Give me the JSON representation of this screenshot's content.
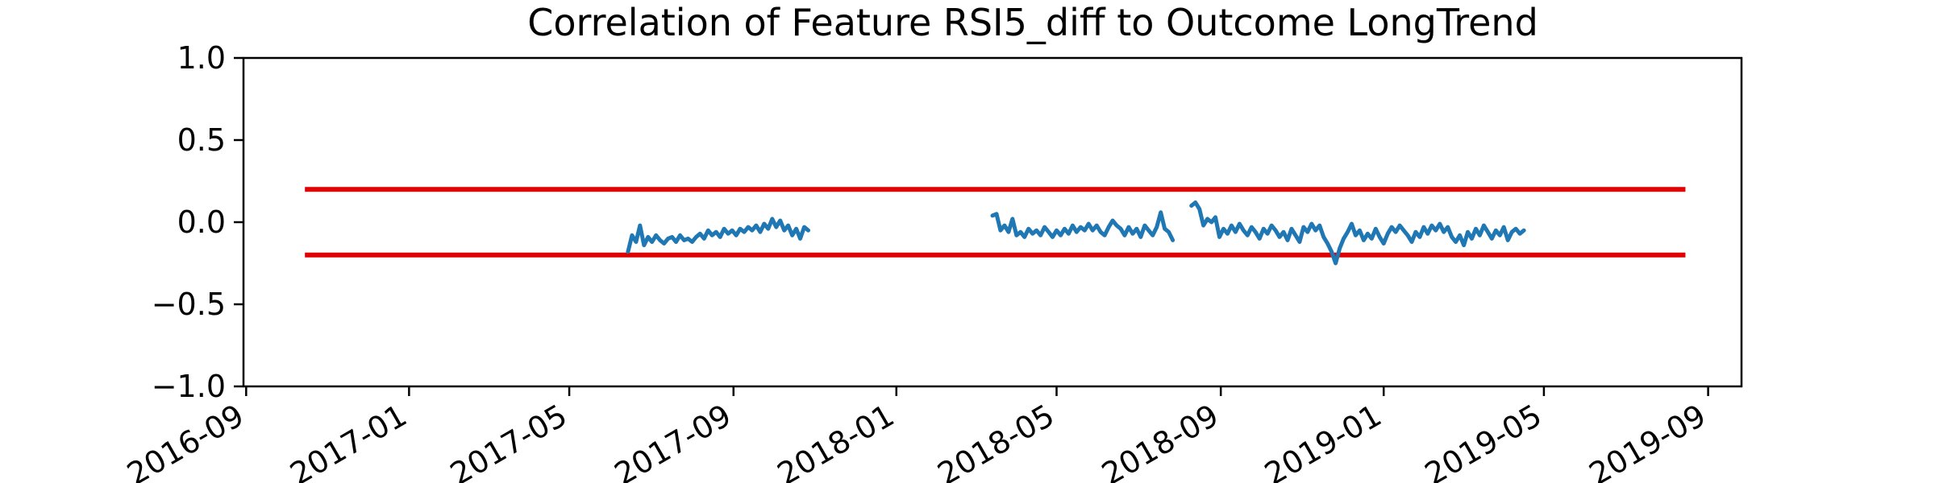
{
  "chart_data": {
    "type": "line",
    "title": "Correlation of Feature RSI5_diff to Outcome LongTrend",
    "xlabel": "",
    "ylabel": "",
    "ylim": [
      -1.0,
      1.0
    ],
    "xlim": [
      "2016-08-30",
      "2019-09-26"
    ],
    "y_ticks": [
      "1.0",
      "0.5",
      "0.0",
      "−0.5",
      "−1.0"
    ],
    "y_tick_values": [
      1.0,
      0.5,
      0.0,
      -0.5,
      -1.0
    ],
    "x_ticks": [
      "2016-09",
      "2017-01",
      "2017-05",
      "2017-09",
      "2018-01",
      "2018-05",
      "2018-09",
      "2019-01",
      "2019-05",
      "2019-09"
    ],
    "x_tick_dates": [
      "2016-09-01",
      "2017-01-01",
      "2017-05-01",
      "2017-09-01",
      "2018-01-01",
      "2018-05-01",
      "2018-09-01",
      "2019-01-01",
      "2019-05-01",
      "2019-09-01"
    ],
    "grid": false,
    "legend": "none",
    "colors": {
      "series": "#1f77b4",
      "threshold": "#e00000"
    },
    "thresholds": [
      {
        "y": 0.2,
        "x_start": "2016-10-15",
        "x_end": "2019-08-15"
      },
      {
        "y": -0.2,
        "x_start": "2016-10-15",
        "x_end": "2019-08-15"
      }
    ],
    "segments": [
      {
        "x": [
          "2017-06-14",
          "2017-06-17",
          "2017-06-20",
          "2017-06-23",
          "2017-06-26",
          "2017-06-29",
          "2017-07-02",
          "2017-07-05",
          "2017-07-08",
          "2017-07-11",
          "2017-07-14",
          "2017-07-17",
          "2017-07-20",
          "2017-07-23",
          "2017-07-26",
          "2017-07-29",
          "2017-08-01",
          "2017-08-04",
          "2017-08-07",
          "2017-08-10",
          "2017-08-13",
          "2017-08-16",
          "2017-08-19",
          "2017-08-22",
          "2017-08-25",
          "2017-08-28",
          "2017-08-31",
          "2017-09-03",
          "2017-09-06",
          "2017-09-09",
          "2017-09-12",
          "2017-09-15",
          "2017-09-18",
          "2017-09-21",
          "2017-09-24",
          "2017-09-27",
          "2017-09-30",
          "2017-10-03",
          "2017-10-06",
          "2017-10-09",
          "2017-10-12",
          "2017-10-15",
          "2017-10-18",
          "2017-10-21",
          "2017-10-24",
          "2017-10-27"
        ],
        "y": [
          -0.18,
          -0.08,
          -0.12,
          -0.02,
          -0.14,
          -0.09,
          -0.12,
          -0.08,
          -0.11,
          -0.13,
          -0.1,
          -0.09,
          -0.12,
          -0.08,
          -0.11,
          -0.1,
          -0.12,
          -0.09,
          -0.07,
          -0.1,
          -0.05,
          -0.08,
          -0.06,
          -0.09,
          -0.04,
          -0.07,
          -0.05,
          -0.08,
          -0.04,
          -0.06,
          -0.03,
          -0.05,
          -0.02,
          -0.06,
          -0.01,
          -0.04,
          0.02,
          -0.03,
          0.01,
          -0.05,
          -0.02,
          -0.08,
          -0.04,
          -0.1,
          -0.03,
          -0.05
        ]
      },
      {
        "x": [
          "2018-03-14",
          "2018-03-17",
          "2018-03-20",
          "2018-03-23",
          "2018-03-26",
          "2018-03-29",
          "2018-04-01",
          "2018-04-04",
          "2018-04-07",
          "2018-04-10",
          "2018-04-13",
          "2018-04-16",
          "2018-04-19",
          "2018-04-22",
          "2018-04-25",
          "2018-04-28",
          "2018-05-01",
          "2018-05-04",
          "2018-05-07",
          "2018-05-10",
          "2018-05-13",
          "2018-05-16",
          "2018-05-19",
          "2018-05-22",
          "2018-05-25",
          "2018-05-28",
          "2018-05-31",
          "2018-06-03",
          "2018-06-06",
          "2018-06-09",
          "2018-06-12",
          "2018-06-15",
          "2018-06-18",
          "2018-06-21",
          "2018-06-24",
          "2018-06-27",
          "2018-06-30",
          "2018-07-03",
          "2018-07-06",
          "2018-07-09",
          "2018-07-12",
          "2018-07-15",
          "2018-07-18",
          "2018-07-21",
          "2018-07-24",
          "2018-07-27"
        ],
        "y": [
          0.04,
          0.05,
          -0.05,
          -0.02,
          -0.06,
          0.02,
          -0.08,
          -0.06,
          -0.09,
          -0.04,
          -0.07,
          -0.05,
          -0.08,
          -0.03,
          -0.06,
          -0.09,
          -0.05,
          -0.08,
          -0.04,
          -0.07,
          -0.02,
          -0.06,
          -0.03,
          -0.05,
          -0.01,
          -0.05,
          -0.02,
          -0.06,
          -0.08,
          -0.03,
          0.01,
          -0.02,
          -0.04,
          -0.08,
          -0.03,
          -0.07,
          -0.04,
          -0.09,
          -0.02,
          -0.05,
          -0.08,
          -0.03,
          0.06,
          -0.04,
          -0.06,
          -0.11
        ]
      },
      {
        "x": [
          "2018-08-10",
          "2018-08-13",
          "2018-08-16",
          "2018-08-19",
          "2018-08-22",
          "2018-08-25",
          "2018-08-28",
          "2018-08-31",
          "2018-09-03",
          "2018-09-06",
          "2018-09-09",
          "2018-09-12",
          "2018-09-15",
          "2018-09-18",
          "2018-09-21",
          "2018-09-24",
          "2018-09-27",
          "2018-09-30",
          "2018-10-03",
          "2018-10-06",
          "2018-10-09",
          "2018-10-12",
          "2018-10-15",
          "2018-10-18",
          "2018-10-21",
          "2018-10-24",
          "2018-10-27",
          "2018-10-30",
          "2018-11-02",
          "2018-11-05",
          "2018-11-08",
          "2018-11-11",
          "2018-11-14",
          "2018-11-17",
          "2018-11-20",
          "2018-11-23",
          "2018-11-26",
          "2018-11-29",
          "2018-12-02",
          "2018-12-05",
          "2018-12-08",
          "2018-12-11",
          "2018-12-14",
          "2018-12-17",
          "2018-12-20",
          "2018-12-23",
          "2018-12-26",
          "2018-12-29",
          "2019-01-01",
          "2019-01-04",
          "2019-01-07",
          "2019-01-10",
          "2019-01-13",
          "2019-01-16",
          "2019-01-19",
          "2019-01-22",
          "2019-01-25",
          "2019-01-28",
          "2019-01-31",
          "2019-02-03",
          "2019-02-06",
          "2019-02-09",
          "2019-02-12",
          "2019-02-15",
          "2019-02-18",
          "2019-02-21",
          "2019-02-24",
          "2019-02-27",
          "2019-03-02",
          "2019-03-05",
          "2019-03-08",
          "2019-03-11",
          "2019-03-14",
          "2019-03-17",
          "2019-03-20",
          "2019-03-23",
          "2019-03-26",
          "2019-03-29",
          "2019-04-01",
          "2019-04-04",
          "2019-04-07",
          "2019-04-10",
          "2019-04-13",
          "2019-04-16"
        ],
        "y": [
          0.1,
          0.12,
          0.08,
          -0.02,
          0.02,
          0.0,
          0.03,
          -0.09,
          -0.04,
          -0.07,
          -0.02,
          -0.06,
          -0.01,
          -0.05,
          -0.08,
          -0.03,
          -0.06,
          -0.1,
          -0.04,
          -0.07,
          -0.02,
          -0.05,
          -0.09,
          -0.06,
          -0.11,
          -0.04,
          -0.08,
          -0.12,
          -0.03,
          -0.06,
          -0.01,
          -0.05,
          -0.02,
          -0.09,
          -0.13,
          -0.18,
          -0.25,
          -0.16,
          -0.1,
          -0.06,
          -0.01,
          -0.08,
          -0.05,
          -0.11,
          -0.07,
          -0.1,
          -0.04,
          -0.09,
          -0.13,
          -0.07,
          -0.03,
          -0.06,
          -0.02,
          -0.05,
          -0.08,
          -0.12,
          -0.06,
          -0.09,
          -0.03,
          -0.07,
          -0.02,
          -0.05,
          -0.01,
          -0.06,
          -0.03,
          -0.09,
          -0.12,
          -0.08,
          -0.14,
          -0.06,
          -0.1,
          -0.04,
          -0.08,
          -0.02,
          -0.06,
          -0.1,
          -0.05,
          -0.08,
          -0.03,
          -0.11,
          -0.06,
          -0.04,
          -0.07,
          -0.05
        ]
      }
    ]
  }
}
